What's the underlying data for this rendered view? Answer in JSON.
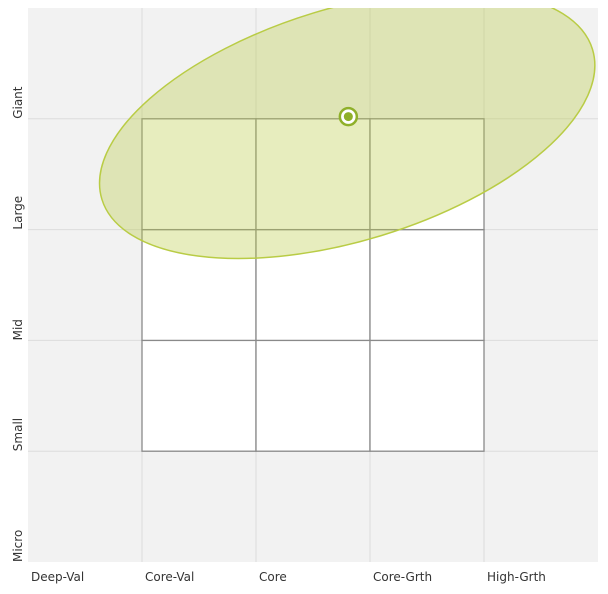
{
  "chart_data": {
    "type": "scatter",
    "xlim": [
      0,
      5
    ],
    "ylim": [
      0,
      5
    ],
    "xticks": [
      {
        "value": 0,
        "label": "Deep-Val"
      },
      {
        "value": 1,
        "label": "Core-Val"
      },
      {
        "value": 2,
        "label": "Core"
      },
      {
        "value": 3,
        "label": "Core-Grth"
      },
      {
        "value": 4,
        "label": "High-Grth"
      }
    ],
    "yticks": [
      {
        "value": 0,
        "label": "Micro"
      },
      {
        "value": 1,
        "label": "Small"
      },
      {
        "value": 2,
        "label": "Mid"
      },
      {
        "value": 3,
        "label": "Large"
      },
      {
        "value": 4,
        "label": "Giant"
      }
    ],
    "grid": true,
    "x": [
      2.81
    ],
    "values": [
      4.02
    ],
    "color": "#8fb02a",
    "zone": {
      "x": 2.8,
      "y": 3.95,
      "rx": 2.25,
      "ry": 1.05,
      "angle": -17,
      "color": "#b9cc45"
    }
  }
}
